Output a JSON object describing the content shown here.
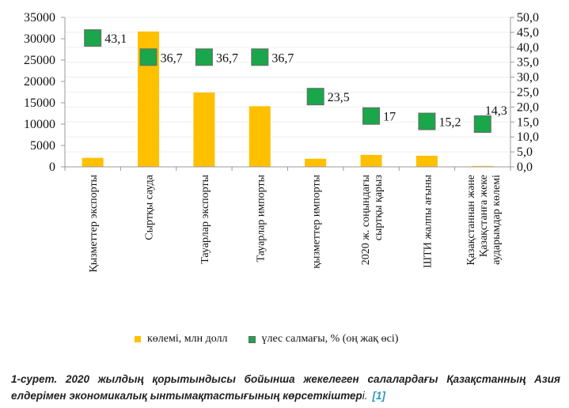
{
  "chart_data": {
    "type": "bar",
    "categories": [
      [
        "Қызметтер экспорты"
      ],
      [
        "Сыртқы сауда"
      ],
      [
        "Тауарлар экспорты"
      ],
      [
        "Тауарлар импорты"
      ],
      [
        "қызметтер импорты"
      ],
      [
        "2020 ж. соңындағы",
        "сыртқы қарыз"
      ],
      [
        "ШТИ жалпы ағыны"
      ],
      [
        "Қазақстаннан және",
        "Қазақстанға жеке",
        "аударымдар көлемі"
      ]
    ],
    "series": [
      {
        "name": "көлемі, млн долл",
        "type": "bar",
        "axis": "left",
        "color": "#FFC000",
        "values": [
          2100,
          31700,
          17400,
          14200,
          1900,
          2800,
          2600,
          200
        ]
      },
      {
        "name": "үлес салмағы, % (оң жақ өсі)",
        "type": "scatter",
        "axis": "right",
        "color": "#1AA64A",
        "values": [
          43.1,
          36.7,
          36.7,
          36.7,
          23.5,
          17,
          15.2,
          14.3
        ],
        "labels": [
          "43,1",
          "36,7",
          "36,7",
          "36,7",
          "23,5",
          "17",
          "15,2",
          "14,3"
        ]
      }
    ],
    "ylim": [
      0,
      35000
    ],
    "y_ticks": [
      "0",
      "5000",
      "10000",
      "15000",
      "20000",
      "25000",
      "30000",
      "35000"
    ],
    "y2lim": [
      0,
      50
    ],
    "y2_ticks": [
      "0,0",
      "5,0",
      "10,0",
      "15,0",
      "20,0",
      "25,0",
      "30,0",
      "35,0",
      "40,0",
      "45,0",
      "50,0"
    ],
    "grid": true,
    "legend_position": "bottom"
  },
  "legend": {
    "bar_label": "көлемі, млн долл",
    "marker_label": "үлес салмағы, % (оң жақ өсі)"
  },
  "caption": {
    "text": "1-сурет. 2020 жылдың қорытындысы бойынша жекелеген салалардағы Қазақстанның Азия елдерімен экономикалық ынтымақтастығының көрсеткіштер",
    "tail": "і.",
    "ref": "[1]"
  }
}
